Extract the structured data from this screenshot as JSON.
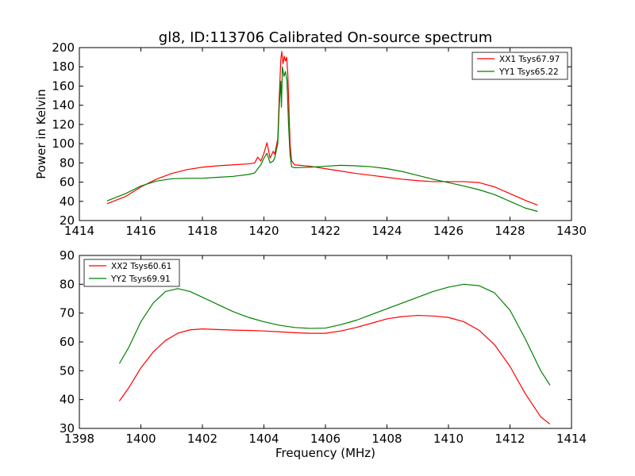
{
  "chart_data": [
    {
      "type": "line",
      "title": "gl8, ID:113706 Calibrated On-source spectrum",
      "xlabel": "",
      "ylabel": "Power in Kelvin",
      "xlim": [
        1414,
        1430
      ],
      "ylim": [
        20,
        200
      ],
      "xticks": [
        1414,
        1416,
        1418,
        1420,
        1422,
        1424,
        1426,
        1428,
        1430
      ],
      "yticks": [
        20,
        40,
        60,
        80,
        100,
        120,
        140,
        160,
        180,
        200
      ],
      "grid": false,
      "legend_position": "top-right",
      "series": [
        {
          "name": "XX1 Tsys67.97",
          "color": "#ff0000",
          "points": [
            [
              1414.9,
              37.5
            ],
            [
              1415.5,
              45
            ],
            [
              1416,
              55
            ],
            [
              1416.5,
              63
            ],
            [
              1417,
              69
            ],
            [
              1417.5,
              73
            ],
            [
              1418,
              75.5
            ],
            [
              1418.5,
              77
            ],
            [
              1419,
              78
            ],
            [
              1419.5,
              79
            ],
            [
              1419.7,
              80
            ],
            [
              1419.8,
              86
            ],
            [
              1419.9,
              82
            ],
            [
              1420,
              90
            ],
            [
              1420.1,
              101
            ],
            [
              1420.2,
              85
            ],
            [
              1420.3,
              92
            ],
            [
              1420.35,
              89
            ],
            [
              1420.45,
              105
            ],
            [
              1420.5,
              150
            ],
            [
              1420.55,
              188
            ],
            [
              1420.58,
              196
            ],
            [
              1420.62,
              183
            ],
            [
              1420.66,
              191
            ],
            [
              1420.7,
              186
            ],
            [
              1420.74,
              190
            ],
            [
              1420.78,
              170
            ],
            [
              1420.85,
              100
            ],
            [
              1420.9,
              82
            ],
            [
              1421,
              78
            ],
            [
              1421.5,
              76.5
            ],
            [
              1422,
              74
            ],
            [
              1422.5,
              71.5
            ],
            [
              1423,
              69
            ],
            [
              1423.5,
              67
            ],
            [
              1424,
              65
            ],
            [
              1424.5,
              63
            ],
            [
              1425,
              61.5
            ],
            [
              1425.5,
              60.5
            ],
            [
              1426,
              60.5
            ],
            [
              1426.5,
              60.5
            ],
            [
              1427,
              59.5
            ],
            [
              1427.5,
              55
            ],
            [
              1428,
              48
            ],
            [
              1428.5,
              41
            ],
            [
              1428.9,
              36
            ]
          ]
        },
        {
          "name": "YY1 Tsys65.22",
          "color": "#008000",
          "points": [
            [
              1414.9,
              40.5
            ],
            [
              1415.5,
              48
            ],
            [
              1416,
              56
            ],
            [
              1416.5,
              61
            ],
            [
              1417,
              63.5
            ],
            [
              1417.5,
              64
            ],
            [
              1418,
              64
            ],
            [
              1418.5,
              65
            ],
            [
              1419,
              66
            ],
            [
              1419.5,
              68
            ],
            [
              1419.7,
              69.5
            ],
            [
              1419.8,
              74
            ],
            [
              1419.9,
              78
            ],
            [
              1420,
              85
            ],
            [
              1420.1,
              90
            ],
            [
              1420.2,
              80
            ],
            [
              1420.3,
              82
            ],
            [
              1420.35,
              85
            ],
            [
              1420.45,
              100
            ],
            [
              1420.5,
              140
            ],
            [
              1420.55,
              165
            ],
            [
              1420.57,
              138
            ],
            [
              1420.6,
              180
            ],
            [
              1420.65,
              170
            ],
            [
              1420.7,
              175
            ],
            [
              1420.75,
              165
            ],
            [
              1420.8,
              120
            ],
            [
              1420.85,
              88
            ],
            [
              1420.9,
              76
            ],
            [
              1421,
              75
            ],
            [
              1421.5,
              75.5
            ],
            [
              1422,
              76.5
            ],
            [
              1422.5,
              77.5
            ],
            [
              1423,
              77
            ],
            [
              1423.5,
              76
            ],
            [
              1424,
              74
            ],
            [
              1424.5,
              71
            ],
            [
              1425,
              67
            ],
            [
              1425.5,
              63
            ],
            [
              1426,
              59.5
            ],
            [
              1426.5,
              56
            ],
            [
              1427,
              52
            ],
            [
              1427.5,
              47
            ],
            [
              1428,
              40
            ],
            [
              1428.5,
              33
            ],
            [
              1428.9,
              29.5
            ]
          ]
        }
      ]
    },
    {
      "type": "line",
      "title": "",
      "xlabel": "Frequency (MHz)",
      "ylabel": "",
      "xlim": [
        1398,
        1414
      ],
      "ylim": [
        30,
        90
      ],
      "xticks": [
        1398,
        1400,
        1402,
        1404,
        1406,
        1408,
        1410,
        1412,
        1414
      ],
      "yticks": [
        30,
        40,
        50,
        60,
        70,
        80,
        90
      ],
      "grid": false,
      "legend_position": "top-left",
      "series": [
        {
          "name": "XX2 Tsys60.61",
          "color": "#ff0000",
          "points": [
            [
              1399.3,
              39.5
            ],
            [
              1399.6,
              44
            ],
            [
              1400,
              51
            ],
            [
              1400.4,
              56.5
            ],
            [
              1400.8,
              60.5
            ],
            [
              1401.2,
              63
            ],
            [
              1401.6,
              64.2
            ],
            [
              1402,
              64.5
            ],
            [
              1402.5,
              64.3
            ],
            [
              1403,
              64.1
            ],
            [
              1403.5,
              64
            ],
            [
              1404,
              63.8
            ],
            [
              1404.5,
              63.5
            ],
            [
              1405,
              63.2
            ],
            [
              1405.5,
              63
            ],
            [
              1406,
              63
            ],
            [
              1406.5,
              63.8
            ],
            [
              1407,
              65
            ],
            [
              1407.5,
              66.5
            ],
            [
              1408,
              68
            ],
            [
              1408.5,
              68.8
            ],
            [
              1409,
              69.2
            ],
            [
              1409.5,
              69
            ],
            [
              1410,
              68.5
            ],
            [
              1410.5,
              67
            ],
            [
              1411,
              64
            ],
            [
              1411.5,
              59
            ],
            [
              1412,
              51.5
            ],
            [
              1412.5,
              42
            ],
            [
              1413,
              34
            ],
            [
              1413.3,
              31.5
            ]
          ]
        },
        {
          "name": "YY2 Tsys69.91",
          "color": "#008000",
          "points": [
            [
              1399.3,
              52.5
            ],
            [
              1399.6,
              58
            ],
            [
              1400,
              67
            ],
            [
              1400.4,
              73.5
            ],
            [
              1400.8,
              77.5
            ],
            [
              1401.2,
              78.5
            ],
            [
              1401.6,
              77.5
            ],
            [
              1402,
              75.5
            ],
            [
              1402.5,
              73
            ],
            [
              1403,
              70.5
            ],
            [
              1403.5,
              68.5
            ],
            [
              1404,
              67
            ],
            [
              1404.5,
              65.8
            ],
            [
              1405,
              65
            ],
            [
              1405.5,
              64.7
            ],
            [
              1406,
              64.8
            ],
            [
              1406.5,
              66
            ],
            [
              1407,
              67.5
            ],
            [
              1407.5,
              69.5
            ],
            [
              1408,
              71.5
            ],
            [
              1408.5,
              73.5
            ],
            [
              1409,
              75.5
            ],
            [
              1409.5,
              77.5
            ],
            [
              1410,
              79
            ],
            [
              1410.5,
              80
            ],
            [
              1411,
              79.5
            ],
            [
              1411.5,
              77
            ],
            [
              1412,
              71
            ],
            [
              1412.5,
              61
            ],
            [
              1413,
              50
            ],
            [
              1413.3,
              45
            ]
          ]
        }
      ]
    }
  ]
}
